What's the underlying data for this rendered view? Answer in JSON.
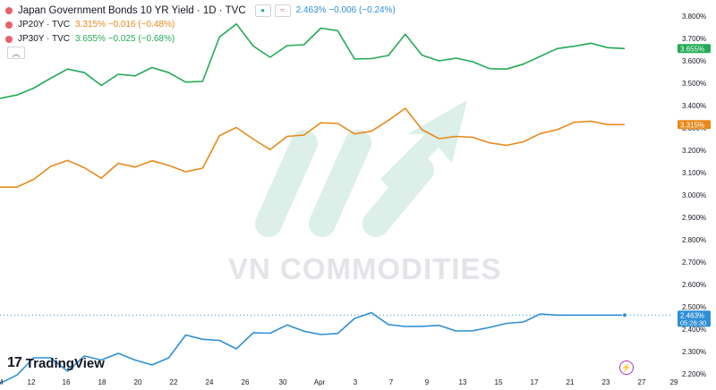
{
  "legend": {
    "title": "Japan Government Bonds 10 YR Yield · 1D · TVC",
    "main_value": "2.463%  −0.006 (−0.24%)",
    "rows": [
      {
        "label": "JP20Y · TVC",
        "value": "3.315%  −0.016 (−0.48%)",
        "color": "#e8891a"
      },
      {
        "label": "JP30Y · TVC",
        "value": "3.655%  −0.025 (−0.68%)",
        "color": "#22ab54"
      }
    ],
    "collapse_icon": "chevron-up-icon"
  },
  "logo": "TradingView",
  "logo_mark": "17",
  "watermark": "VN COMMODITIES",
  "bolt_icon": "⚡",
  "chart_data": {
    "type": "line",
    "x": [
      "11",
      "12",
      "14",
      "16",
      "18",
      "19",
      "20",
      "22",
      "24",
      "25",
      "26",
      "28",
      "29",
      "30",
      "Apr",
      "2",
      "3",
      "4",
      "5",
      "7",
      "8",
      "9",
      "10",
      "12",
      "13",
      "14",
      "15",
      "16",
      "17",
      "19",
      "20",
      "21",
      "22",
      "23",
      "24",
      "26",
      "27",
      "28"
    ],
    "x_ticks": [
      "12",
      "16",
      "18",
      "20",
      "22",
      "24",
      "26",
      "30",
      "Apr",
      "3",
      "7",
      "9",
      "13",
      "15",
      "17",
      "21",
      "23",
      "27",
      "29",
      "M"
    ],
    "series": [
      {
        "name": "JP30Y",
        "color": "#22ab54",
        "values": [
          3.432,
          3.447,
          3.478,
          3.522,
          3.563,
          3.547,
          3.49,
          3.54,
          3.533,
          3.57,
          3.547,
          3.505,
          3.508,
          3.706,
          3.765,
          3.666,
          3.616,
          3.668,
          3.672,
          3.746,
          3.735,
          3.608,
          3.61,
          3.624,
          3.719,
          3.625,
          3.6,
          3.612,
          3.596,
          3.565,
          3.563,
          3.585,
          3.62,
          3.655,
          3.665,
          3.679,
          3.659,
          3.655
        ]
      },
      {
        "name": "JP20Y",
        "color": "#e8891a",
        "values": [
          3.035,
          3.035,
          3.07,
          3.128,
          3.155,
          3.122,
          3.075,
          3.142,
          3.125,
          3.153,
          3.132,
          3.104,
          3.12,
          3.265,
          3.302,
          3.25,
          3.203,
          3.262,
          3.268,
          3.323,
          3.32,
          3.273,
          3.285,
          3.333,
          3.388,
          3.292,
          3.252,
          3.262,
          3.258,
          3.233,
          3.222,
          3.238,
          3.275,
          3.292,
          3.325,
          3.33,
          3.315,
          3.315
        ]
      },
      {
        "name": "JP10Y",
        "color": "#2e8fd6",
        "values": [
          2.158,
          2.195,
          2.272,
          2.272,
          2.212,
          2.28,
          2.262,
          2.292,
          2.262,
          2.24,
          2.272,
          2.374,
          2.355,
          2.35,
          2.312,
          2.384,
          2.382,
          2.419,
          2.391,
          2.376,
          2.381,
          2.448,
          2.474,
          2.421,
          2.412,
          2.413,
          2.417,
          2.392,
          2.393,
          2.408,
          2.426,
          2.432,
          2.468,
          2.463,
          2.463,
          2.463,
          2.463,
          2.463
        ]
      }
    ],
    "y_ticks": [
      "3.800%",
      "3.700%",
      "3.600%",
      "3.500%",
      "3.400%",
      "3.300%",
      "3.200%",
      "3.100%",
      "3.000%",
      "2.900%",
      "2.800%",
      "2.700%",
      "2.600%",
      "2.500%",
      "2.400%",
      "2.300%",
      "2.200%"
    ],
    "ylim": [
      2.2,
      3.8
    ],
    "price_labels": [
      {
        "text": "3.655%",
        "color": "#22ab54",
        "value": 3.655
      },
      {
        "text": "3.315%",
        "color": "#e8891a",
        "value": 3.315
      },
      {
        "text": "2.463%",
        "color": "#2e8fd6",
        "value": 2.463,
        "sub": "05:26:30"
      }
    ],
    "grid": false
  }
}
